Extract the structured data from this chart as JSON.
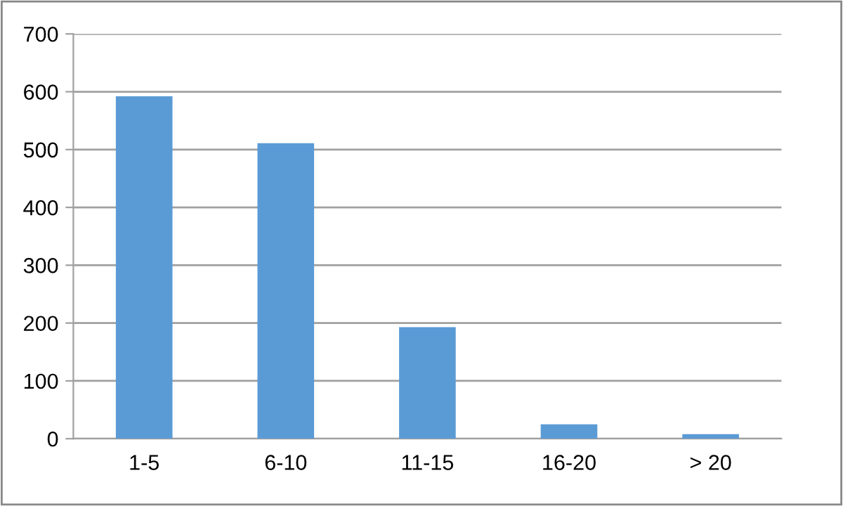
{
  "chart_data": {
    "type": "bar",
    "categories": [
      "1-5",
      "6-10",
      "11-15",
      "16-20",
      "> 20"
    ],
    "values": [
      592,
      511,
      193,
      25,
      8
    ],
    "color": "#5b9bd5",
    "ylim": [
      0,
      700
    ],
    "yticks": [
      0,
      100,
      200,
      300,
      400,
      500,
      600,
      700
    ],
    "grid": "y"
  }
}
